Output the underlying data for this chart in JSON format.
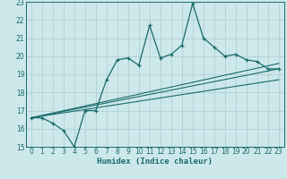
{
  "xlabel": "Humidex (Indice chaleur)",
  "bg_color": "#cde8eb",
  "grid_color": "#b0d0d5",
  "line_color": "#1a6b6b",
  "xlim": [
    -0.5,
    23.5
  ],
  "ylim": [
    15,
    23
  ],
  "xticks": [
    0,
    1,
    2,
    3,
    4,
    5,
    6,
    7,
    8,
    9,
    10,
    11,
    12,
    13,
    14,
    15,
    16,
    17,
    18,
    19,
    20,
    21,
    22,
    23
  ],
  "yticks": [
    15,
    16,
    17,
    18,
    19,
    20,
    21,
    22,
    23
  ],
  "main_line_x": [
    0,
    1,
    2,
    3,
    4,
    5,
    6,
    7,
    8,
    9,
    10,
    11,
    12,
    13,
    14,
    15,
    16,
    17,
    18,
    19,
    20,
    21,
    22,
    23
  ],
  "main_line_y": [
    16.6,
    16.6,
    16.3,
    15.9,
    15.0,
    17.0,
    17.0,
    18.7,
    19.8,
    19.9,
    19.5,
    21.7,
    19.9,
    20.1,
    20.6,
    22.9,
    21.0,
    20.5,
    20.0,
    20.1,
    19.8,
    19.7,
    19.3,
    19.3
  ],
  "line1_x": [
    0,
    23
  ],
  "line1_y": [
    16.6,
    19.3
  ],
  "line2_x": [
    0,
    23
  ],
  "line2_y": [
    16.6,
    19.6
  ],
  "line3_x": [
    0,
    23
  ],
  "line3_y": [
    16.6,
    18.7
  ]
}
